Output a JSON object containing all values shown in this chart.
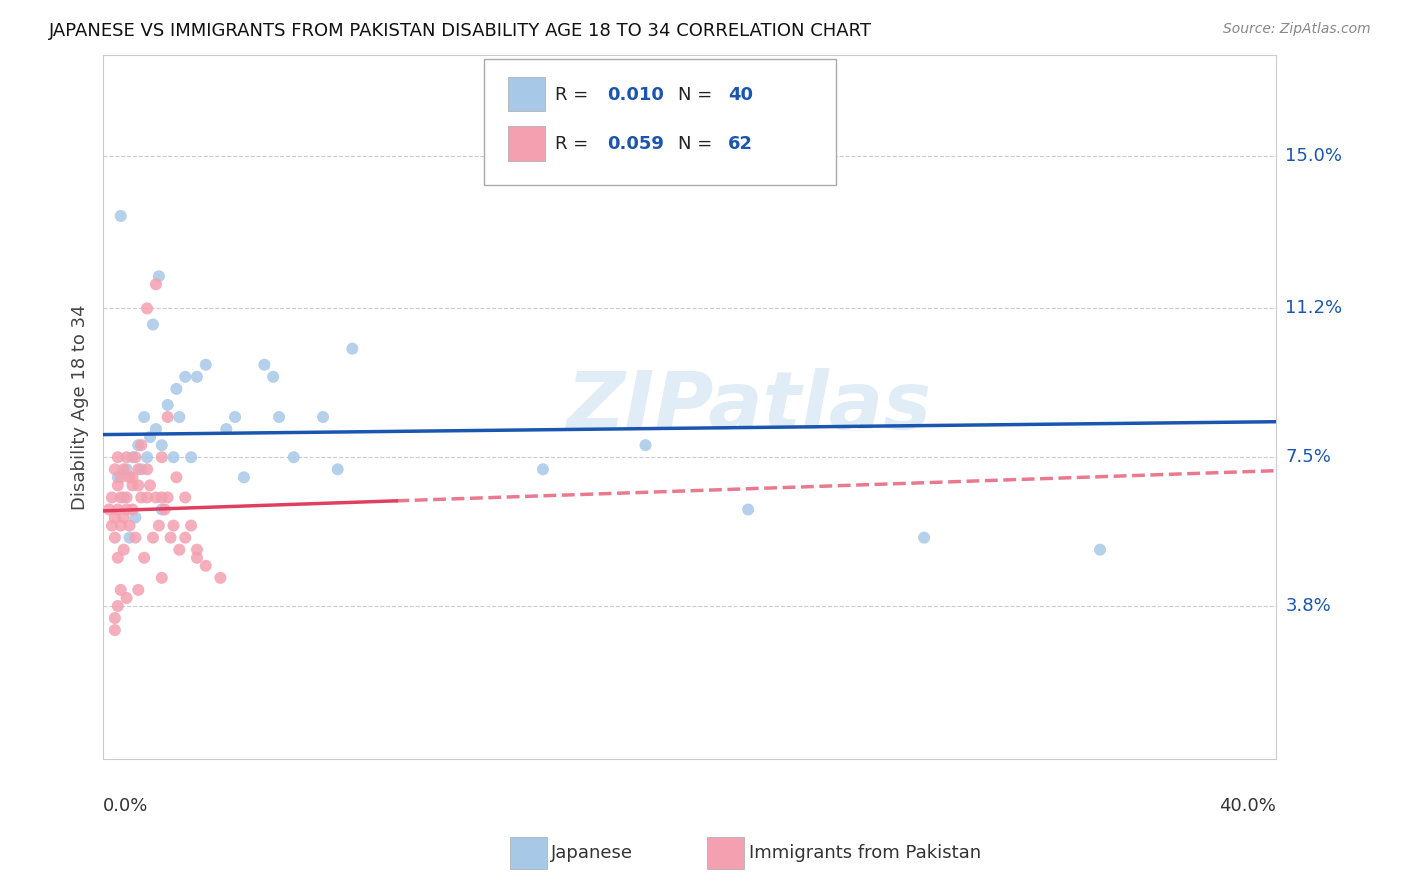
{
  "title": "JAPANESE VS IMMIGRANTS FROM PAKISTAN DISABILITY AGE 18 TO 34 CORRELATION CHART",
  "source": "Source: ZipAtlas.com",
  "ylabel": "Disability Age 18 to 34",
  "ytick_labels": [
    "3.8%",
    "7.5%",
    "11.2%",
    "15.0%"
  ],
  "ytick_values": [
    3.8,
    7.5,
    11.2,
    15.0
  ],
  "xlim": [
    0.0,
    40.0
  ],
  "ylim": [
    0.0,
    17.5
  ],
  "watermark": "ZIPatlas",
  "blue_color": "#a8c8e8",
  "blue_line_color": "#1a56b0",
  "pink_color": "#f4a0b0",
  "pink_line_color": "#e04060",
  "dot_size": 75,
  "background_color": "#ffffff",
  "grid_color": "#cccccc",
  "japanese_x": [
    0.5,
    0.7,
    0.8,
    0.9,
    1.0,
    1.1,
    1.2,
    1.3,
    1.4,
    1.5,
    1.6,
    1.8,
    2.0,
    2.0,
    2.2,
    2.4,
    2.5,
    2.6,
    2.8,
    3.0,
    3.2,
    3.5,
    4.2,
    4.5,
    4.8,
    5.5,
    5.8,
    6.0,
    6.5,
    7.5,
    8.0,
    8.5,
    15.0,
    18.5,
    22.0,
    28.0,
    34.0,
    1.7,
    0.6,
    1.9
  ],
  "japanese_y": [
    7.0,
    6.5,
    7.2,
    5.5,
    7.5,
    6.0,
    7.8,
    7.2,
    8.5,
    7.5,
    8.0,
    8.2,
    7.8,
    6.2,
    8.8,
    7.5,
    9.2,
    8.5,
    9.5,
    7.5,
    9.5,
    9.8,
    8.2,
    8.5,
    7.0,
    9.8,
    9.5,
    8.5,
    7.5,
    8.5,
    7.2,
    10.2,
    7.2,
    7.8,
    6.2,
    5.5,
    5.2,
    10.8,
    13.5,
    12.0
  ],
  "pakistan_x": [
    0.2,
    0.3,
    0.3,
    0.4,
    0.4,
    0.4,
    0.5,
    0.5,
    0.5,
    0.5,
    0.6,
    0.6,
    0.6,
    0.7,
    0.7,
    0.7,
    0.8,
    0.8,
    0.8,
    0.9,
    0.9,
    1.0,
    1.0,
    1.0,
    1.1,
    1.1,
    1.2,
    1.2,
    1.3,
    1.3,
    1.4,
    1.5,
    1.5,
    1.6,
    1.7,
    1.8,
    1.9,
    2.0,
    2.0,
    2.1,
    2.2,
    2.3,
    2.4,
    2.5,
    2.6,
    2.8,
    2.8,
    3.0,
    3.2,
    3.5,
    4.0,
    0.4,
    0.6,
    1.5,
    1.8,
    2.2,
    0.5,
    0.8,
    1.2,
    3.2,
    0.4,
    2.0
  ],
  "pakistan_y": [
    6.2,
    5.8,
    6.5,
    5.5,
    6.0,
    7.2,
    6.2,
    5.0,
    6.8,
    7.5,
    5.8,
    6.5,
    7.0,
    5.2,
    6.0,
    7.2,
    6.5,
    7.5,
    6.2,
    5.8,
    7.0,
    6.8,
    7.0,
    6.2,
    5.5,
    7.5,
    6.8,
    7.2,
    6.5,
    7.8,
    5.0,
    6.5,
    7.2,
    6.8,
    5.5,
    6.5,
    5.8,
    7.5,
    6.5,
    6.2,
    6.5,
    5.5,
    5.8,
    7.0,
    5.2,
    5.5,
    6.5,
    5.8,
    5.2,
    4.8,
    4.5,
    3.5,
    4.2,
    11.2,
    11.8,
    8.5,
    3.8,
    4.0,
    4.2,
    5.0,
    3.2,
    4.5
  ],
  "r_japanese": 0.01,
  "r_pakistan": 0.059,
  "n_japanese": 40,
  "n_pakistan": 62
}
